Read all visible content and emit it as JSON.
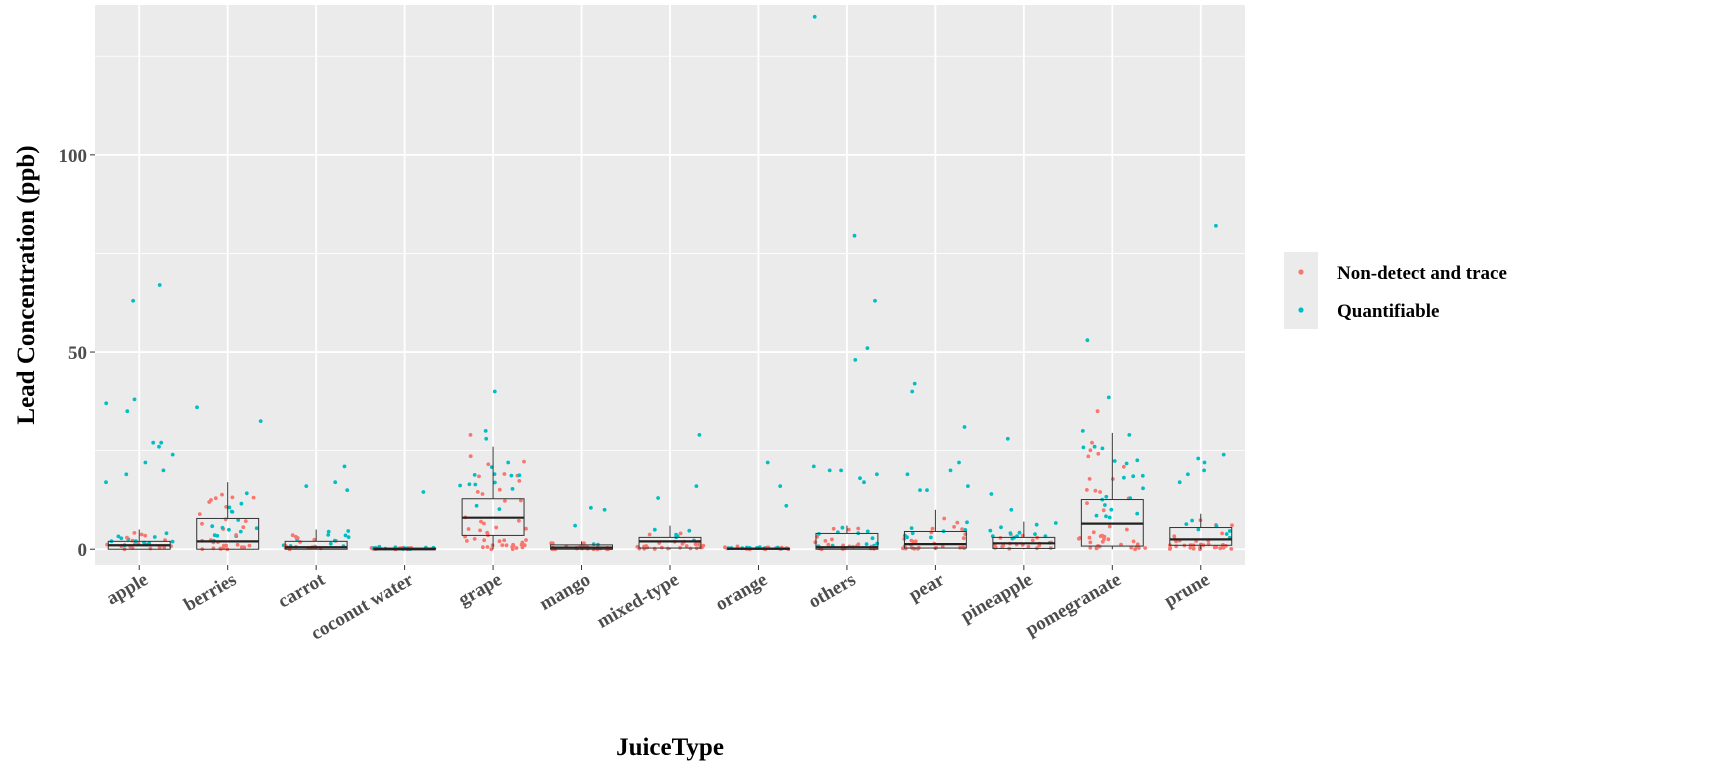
{
  "chart_data": {
    "type": "box-jitter",
    "xlabel": "JuiceType",
    "ylabel": "Lead Concentration (ppb)",
    "ylim": [
      -4,
      138
    ],
    "y_ticks": [
      0,
      50,
      100
    ],
    "grid": true,
    "legend_position": "right",
    "categories": [
      "apple",
      "berries",
      "carrot",
      "coconut water",
      "grape",
      "mango",
      "mixed-type",
      "orange",
      "others",
      "pear",
      "pineapple",
      "pomegranate",
      "prune"
    ],
    "series": [
      {
        "name": "Non-detect and trace",
        "color": "#F8766D"
      },
      {
        "name": "Quantifiable",
        "color": "#00BFC4"
      }
    ],
    "boxes": [
      {
        "category": "apple",
        "q1": 0,
        "median": 1,
        "q3": 2,
        "whisker_low": 0,
        "whisker_high": 5
      },
      {
        "category": "berries",
        "q1": 0,
        "median": 2,
        "q3": 7.8,
        "whisker_low": 0,
        "whisker_high": 17
      },
      {
        "category": "carrot",
        "q1": 0,
        "median": 0.5,
        "q3": 2,
        "whisker_low": 0,
        "whisker_high": 5
      },
      {
        "category": "coconut water",
        "q1": 0,
        "median": 0,
        "q3": 0.3,
        "whisker_low": 0,
        "whisker_high": 0.3
      },
      {
        "category": "grape",
        "q1": 3.5,
        "median": 8,
        "q3": 12.8,
        "whisker_low": 0,
        "whisker_high": 26
      },
      {
        "category": "mango",
        "q1": 0,
        "median": 0.4,
        "q3": 1.1,
        "whisker_low": 0,
        "whisker_high": 2
      },
      {
        "category": "mixed-type",
        "q1": 0.3,
        "median": 2,
        "q3": 3,
        "whisker_low": 0,
        "whisker_high": 6
      },
      {
        "category": "orange",
        "q1": 0,
        "median": 0.1,
        "q3": 0.3,
        "whisker_low": 0,
        "whisker_high": 0.5
      },
      {
        "category": "others",
        "q1": 0,
        "median": 0.5,
        "q3": 4,
        "whisker_low": 0,
        "whisker_high": 6
      },
      {
        "category": "pear",
        "q1": 0.3,
        "median": 1.3,
        "q3": 4.5,
        "whisker_low": 0,
        "whisker_high": 10
      },
      {
        "category": "pineapple",
        "q1": 0.2,
        "median": 1.5,
        "q3": 3,
        "whisker_low": 0,
        "whisker_high": 7
      },
      {
        "category": "pomegranate",
        "q1": 0.8,
        "median": 6.5,
        "q3": 12.6,
        "whisker_low": 0,
        "whisker_high": 29.5
      },
      {
        "category": "prune",
        "q1": 1,
        "median": 2.5,
        "q3": 5.5,
        "whisker_low": 0,
        "whisker_high": 9
      }
    ],
    "outliers": {
      "apple": [
        67,
        63,
        38,
        37,
        35,
        27,
        27,
        26,
        24,
        22,
        20,
        19,
        17
      ],
      "berries": [
        36,
        32.5
      ],
      "carrot": [
        21,
        17,
        16,
        15
      ],
      "coconut water": [
        14.5
      ],
      "grape": [
        40,
        30,
        29,
        28
      ],
      "mango": [
        10.5,
        10,
        6
      ],
      "mixed-type": [
        29,
        16,
        13
      ],
      "orange": [
        22,
        16,
        11
      ],
      "others": [
        135,
        79.5,
        63,
        51,
        48,
        21,
        20,
        20,
        19,
        18,
        17
      ],
      "pear": [
        42,
        40,
        31,
        22,
        20,
        19,
        16,
        15,
        15
      ],
      "pineapple": [
        28,
        14,
        10
      ],
      "pomegranate": [
        53,
        38.5,
        35,
        30,
        29,
        27,
        26
      ],
      "prune": [
        82,
        24,
        23,
        22,
        20,
        19,
        17
      ]
    }
  }
}
